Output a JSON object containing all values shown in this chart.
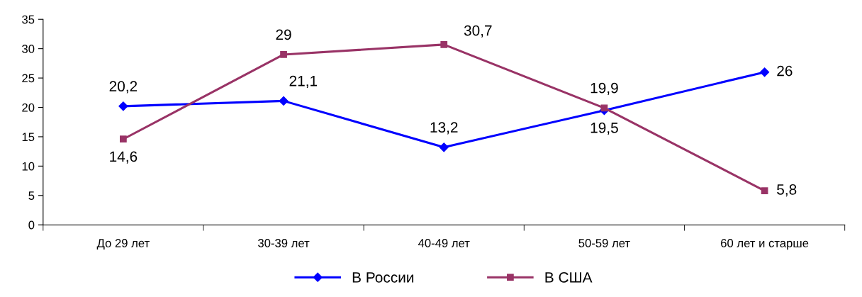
{
  "chart_data": {
    "type": "line",
    "categories": [
      "До 29 лет",
      "30-39 лет",
      "40-49 лет",
      "50-59 лет",
      "60 лет и старше"
    ],
    "series": [
      {
        "name": "В России",
        "color": "#0000ff",
        "marker": "diamond",
        "values": [
          20.2,
          21.1,
          13.2,
          19.5,
          26
        ],
        "value_labels": [
          "20,2",
          "21,1",
          "13,2",
          "19,5",
          "26"
        ]
      },
      {
        "name": "В США",
        "color": "#993366",
        "marker": "square",
        "values": [
          14.6,
          29,
          30.7,
          19.9,
          5.8
        ],
        "value_labels": [
          "14,6",
          "29",
          "30,7",
          "19,9",
          "5,8"
        ]
      }
    ],
    "ylim": [
      0,
      35
    ],
    "yticks": [
      0,
      5,
      10,
      15,
      20,
      25,
      30,
      35
    ],
    "grid": false,
    "legend": "bottom",
    "line_style": "solid"
  }
}
